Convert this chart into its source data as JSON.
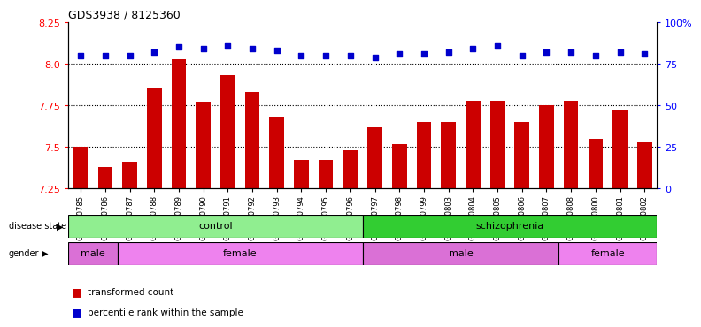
{
  "title": "GDS3938 / 8125360",
  "samples": [
    "GSM630785",
    "GSM630786",
    "GSM630787",
    "GSM630788",
    "GSM630789",
    "GSM630790",
    "GSM630791",
    "GSM630792",
    "GSM630793",
    "GSM630794",
    "GSM630795",
    "GSM630796",
    "GSM630797",
    "GSM630798",
    "GSM630799",
    "GSM630803",
    "GSM630804",
    "GSM630805",
    "GSM630806",
    "GSM630807",
    "GSM630808",
    "GSM630800",
    "GSM630801",
    "GSM630802"
  ],
  "bar_values": [
    7.5,
    7.38,
    7.41,
    7.85,
    8.03,
    7.77,
    7.93,
    7.83,
    7.68,
    7.42,
    7.42,
    7.48,
    7.62,
    7.52,
    7.65,
    7.65,
    7.78,
    7.78,
    7.65,
    7.75,
    7.78,
    7.55,
    7.72,
    7.53
  ],
  "percentile_values": [
    80,
    80,
    80,
    82,
    85,
    84,
    86,
    84,
    83,
    80,
    80,
    80,
    79,
    81,
    81,
    82,
    84,
    86,
    80,
    82,
    82,
    80,
    82,
    81
  ],
  "ylim_left": [
    7.25,
    8.25
  ],
  "ylim_right": [
    0,
    100
  ],
  "yticks_left": [
    7.25,
    7.5,
    7.75,
    8.0,
    8.25
  ],
  "yticks_right": [
    0,
    25,
    50,
    75,
    100
  ],
  "bar_color": "#cc0000",
  "percentile_color": "#0000cc",
  "disease_state_groups": [
    {
      "label": "control",
      "start": 0,
      "end": 12,
      "color": "#90ee90"
    },
    {
      "label": "schizophrenia",
      "start": 12,
      "end": 24,
      "color": "#32cd32"
    }
  ],
  "gender_groups": [
    {
      "label": "male",
      "start": 0,
      "end": 2,
      "color": "#da70d6"
    },
    {
      "label": "female",
      "start": 2,
      "end": 12,
      "color": "#ee82ee"
    },
    {
      "label": "male",
      "start": 12,
      "end": 20,
      "color": "#da70d6"
    },
    {
      "label": "female",
      "start": 20,
      "end": 24,
      "color": "#ee82ee"
    }
  ],
  "disease_state_label": "disease state",
  "gender_label": "gender",
  "legend_items": [
    {
      "label": "transformed count",
      "color": "#cc0000"
    },
    {
      "label": "percentile rank within the sample",
      "color": "#0000cc"
    }
  ],
  "background_color": "#ffffff",
  "dotted_lines": [
    7.5,
    7.75,
    8.0
  ]
}
